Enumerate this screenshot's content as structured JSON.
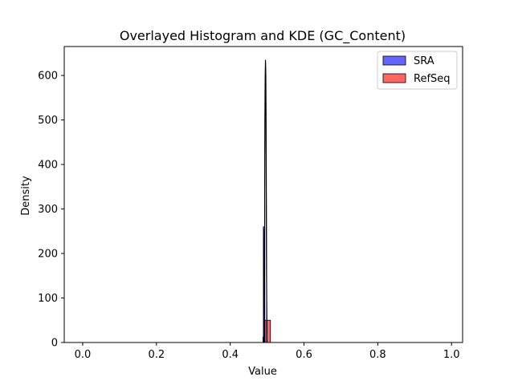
{
  "chart_data": {
    "type": "bar",
    "title": "Overlayed Histogram and KDE (GC_Content)",
    "xlabel": "Value",
    "ylabel": "Density",
    "xlim": [
      -0.05,
      1.03
    ],
    "ylim": [
      0,
      665
    ],
    "x_ticks": [
      0.0,
      0.2,
      0.4,
      0.6,
      0.8,
      1.0
    ],
    "x_tick_labels": [
      "0.0",
      "0.2",
      "0.4",
      "0.6",
      "0.8",
      "1.0"
    ],
    "y_ticks": [
      0,
      100,
      200,
      300,
      400,
      500,
      600
    ],
    "y_tick_labels": [
      "0",
      "100",
      "200",
      "300",
      "400",
      "500",
      "600"
    ],
    "grid": false,
    "legend_position": "top-right",
    "series": [
      {
        "name": "SRA",
        "kind": "histogram",
        "color": "#0000ff",
        "fill_opacity": 0.6,
        "bins": [
          {
            "x0": 0.4898,
            "x1": 0.4928,
            "value": 260
          }
        ],
        "kde": [
          {
            "x": 0.49,
            "y": 0
          },
          {
            "x": 0.4905,
            "y": 40
          },
          {
            "x": 0.491,
            "y": 130
          },
          {
            "x": 0.4915,
            "y": 230
          },
          {
            "x": 0.492,
            "y": 255
          },
          {
            "x": 0.4925,
            "y": 235
          },
          {
            "x": 0.493,
            "y": 180
          },
          {
            "x": 0.4935,
            "y": 0
          }
        ]
      },
      {
        "name": "RefSeq",
        "kind": "histogram",
        "color": "#ff0000",
        "fill_opacity": 0.6,
        "bins": [
          {
            "x0": 0.4888,
            "x1": 0.491,
            "value": 12
          },
          {
            "x0": 0.494,
            "x1": 0.509,
            "value": 50
          }
        ],
        "kde": [
          {
            "x": 0.493,
            "y": 0
          },
          {
            "x": 0.4935,
            "y": 320
          },
          {
            "x": 0.494,
            "y": 495
          },
          {
            "x": 0.4945,
            "y": 565
          },
          {
            "x": 0.4955,
            "y": 635
          },
          {
            "x": 0.4965,
            "y": 600
          },
          {
            "x": 0.4975,
            "y": 420
          },
          {
            "x": 0.4985,
            "y": 150
          },
          {
            "x": 0.4995,
            "y": 0
          }
        ]
      }
    ]
  }
}
